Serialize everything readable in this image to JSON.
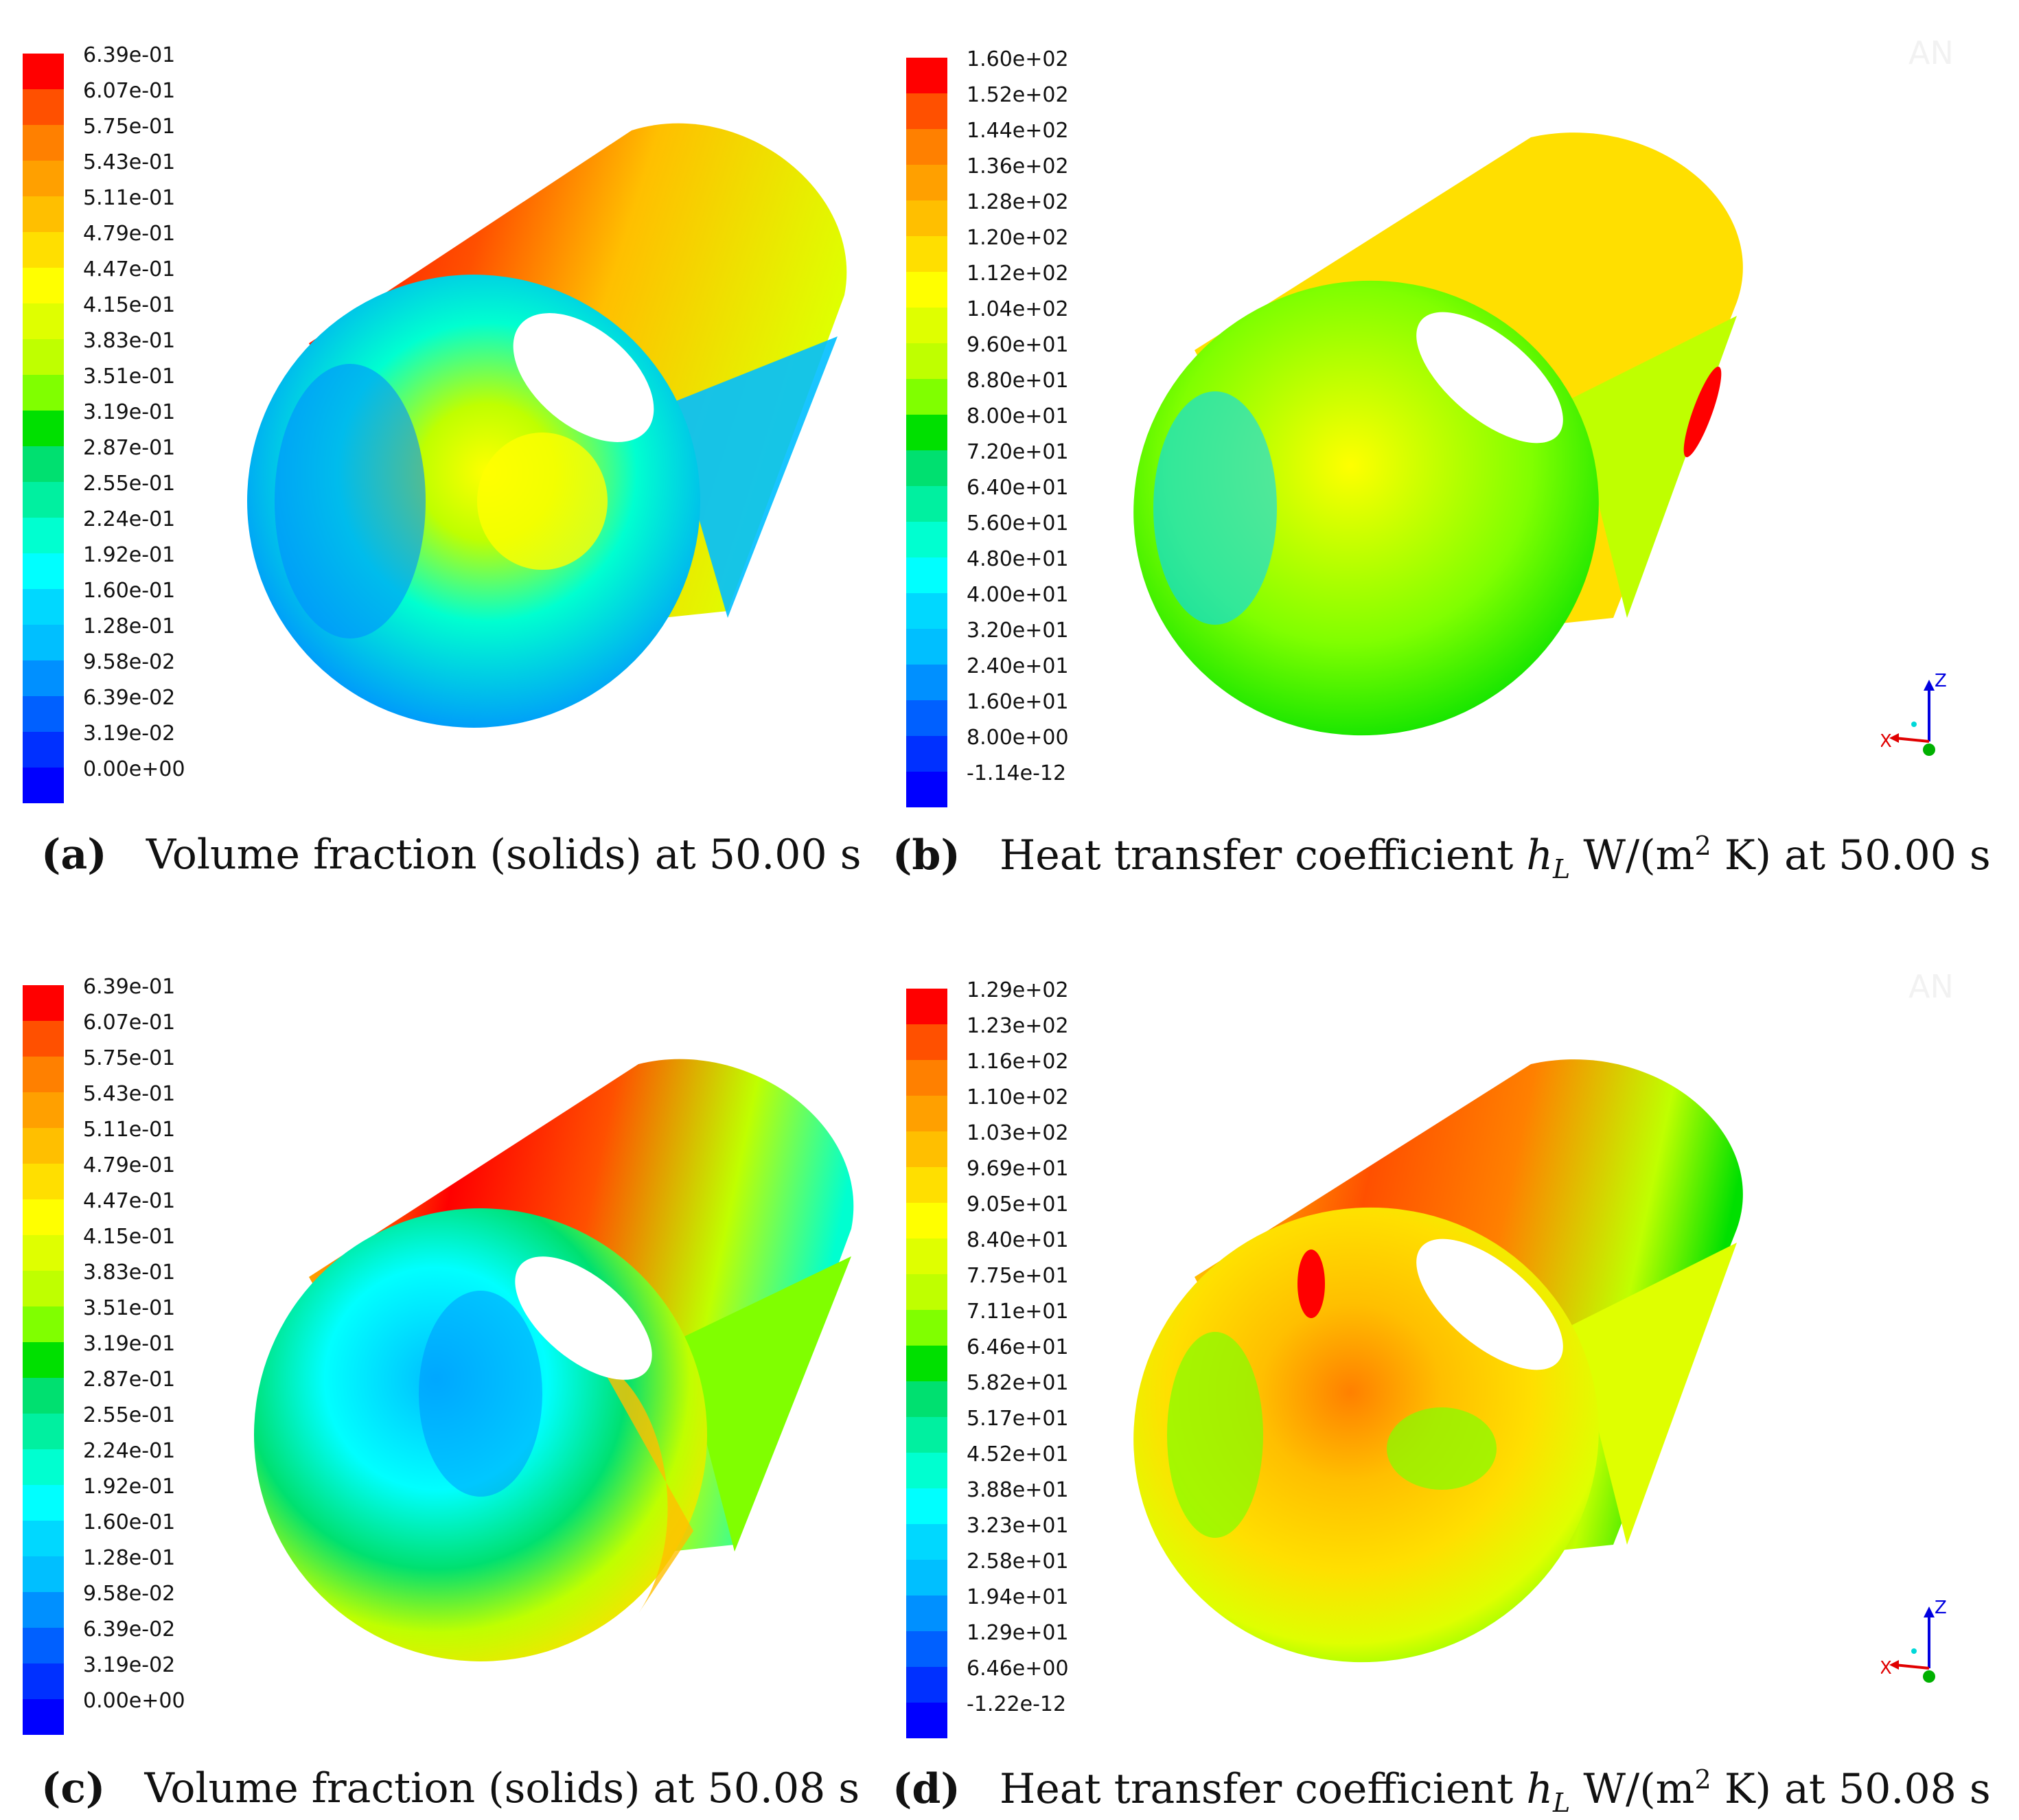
{
  "panels": [
    {
      "id": "a",
      "legend": [
        "6.39e-01",
        "6.07e-01",
        "5.75e-01",
        "5.43e-01",
        "5.11e-01",
        "4.79e-01",
        "4.47e-01",
        "4.15e-01",
        "3.83e-01",
        "3.51e-01",
        "3.19e-01",
        "2.87e-01",
        "2.55e-01",
        "2.24e-01",
        "1.92e-01",
        "1.60e-01",
        "1.28e-01",
        "9.58e-02",
        "6.39e-02",
        "3.19e-02",
        "0.00e+00"
      ],
      "caption": {
        "letter": "(a)",
        "text": "Volume fraction (solids) at 50.00 s"
      }
    },
    {
      "id": "b",
      "legend": [
        "1.60e+02",
        "1.52e+02",
        "1.44e+02",
        "1.36e+02",
        "1.28e+02",
        "1.20e+02",
        "1.12e+02",
        "1.04e+02",
        "9.60e+01",
        "8.80e+01",
        "8.00e+01",
        "7.20e+01",
        "6.40e+01",
        "5.60e+01",
        "4.80e+01",
        "4.00e+01",
        "3.20e+01",
        "2.40e+01",
        "1.60e+01",
        "8.00e+00",
        "-1.14e-12"
      ],
      "caption": {
        "letter": "(b)",
        "pre": "Heat transfer coefficient",
        "h": "h",
        "sub": "L",
        "unit": "W/(m",
        "sup": "2",
        "post": "K) at 50.00 s"
      }
    },
    {
      "id": "c",
      "legend": [
        "6.39e-01",
        "6.07e-01",
        "5.75e-01",
        "5.43e-01",
        "5.11e-01",
        "4.79e-01",
        "4.47e-01",
        "4.15e-01",
        "3.83e-01",
        "3.51e-01",
        "3.19e-01",
        "2.87e-01",
        "2.55e-01",
        "2.24e-01",
        "1.92e-01",
        "1.60e-01",
        "1.28e-01",
        "9.58e-02",
        "6.39e-02",
        "3.19e-02",
        "0.00e+00"
      ],
      "caption": {
        "letter": "(c)",
        "text": "Volume fraction (solids) at 50.08 s"
      }
    },
    {
      "id": "d",
      "legend": [
        "1.29e+02",
        "1.23e+02",
        "1.16e+02",
        "1.10e+02",
        "1.03e+02",
        "9.69e+01",
        "9.05e+01",
        "8.40e+01",
        "7.75e+01",
        "7.11e+01",
        "6.46e+01",
        "5.82e+01",
        "5.17e+01",
        "4.52e+01",
        "3.88e+01",
        "3.23e+01",
        "2.58e+01",
        "1.94e+01",
        "1.29e+01",
        "6.46e+00",
        "-1.22e-12"
      ],
      "caption": {
        "letter": "(d)",
        "pre": "Heat transfer coefficient",
        "h": "h",
        "sub": "L",
        "unit": "W/(m",
        "sup": "2",
        "post": "K) at 50.08 s"
      }
    }
  ],
  "colormap": [
    "#ff0000",
    "#ff5000",
    "#ff8000",
    "#ffa000",
    "#ffbf00",
    "#ffdf00",
    "#ffff00",
    "#dfff00",
    "#bfff00",
    "#80ff00",
    "#00e000",
    "#00e070",
    "#00f0a0",
    "#00ffd0",
    "#00ffff",
    "#00d8ff",
    "#00bfff",
    "#0090ff",
    "#0060ff",
    "#0030ff",
    "#0000ff"
  ],
  "axes_triad": {
    "x": "X",
    "z": "Z",
    "x_color": "#e00000",
    "z_color": "#0000e0",
    "y_color": "#00b000"
  },
  "watermark": {
    "text": "AN"
  }
}
